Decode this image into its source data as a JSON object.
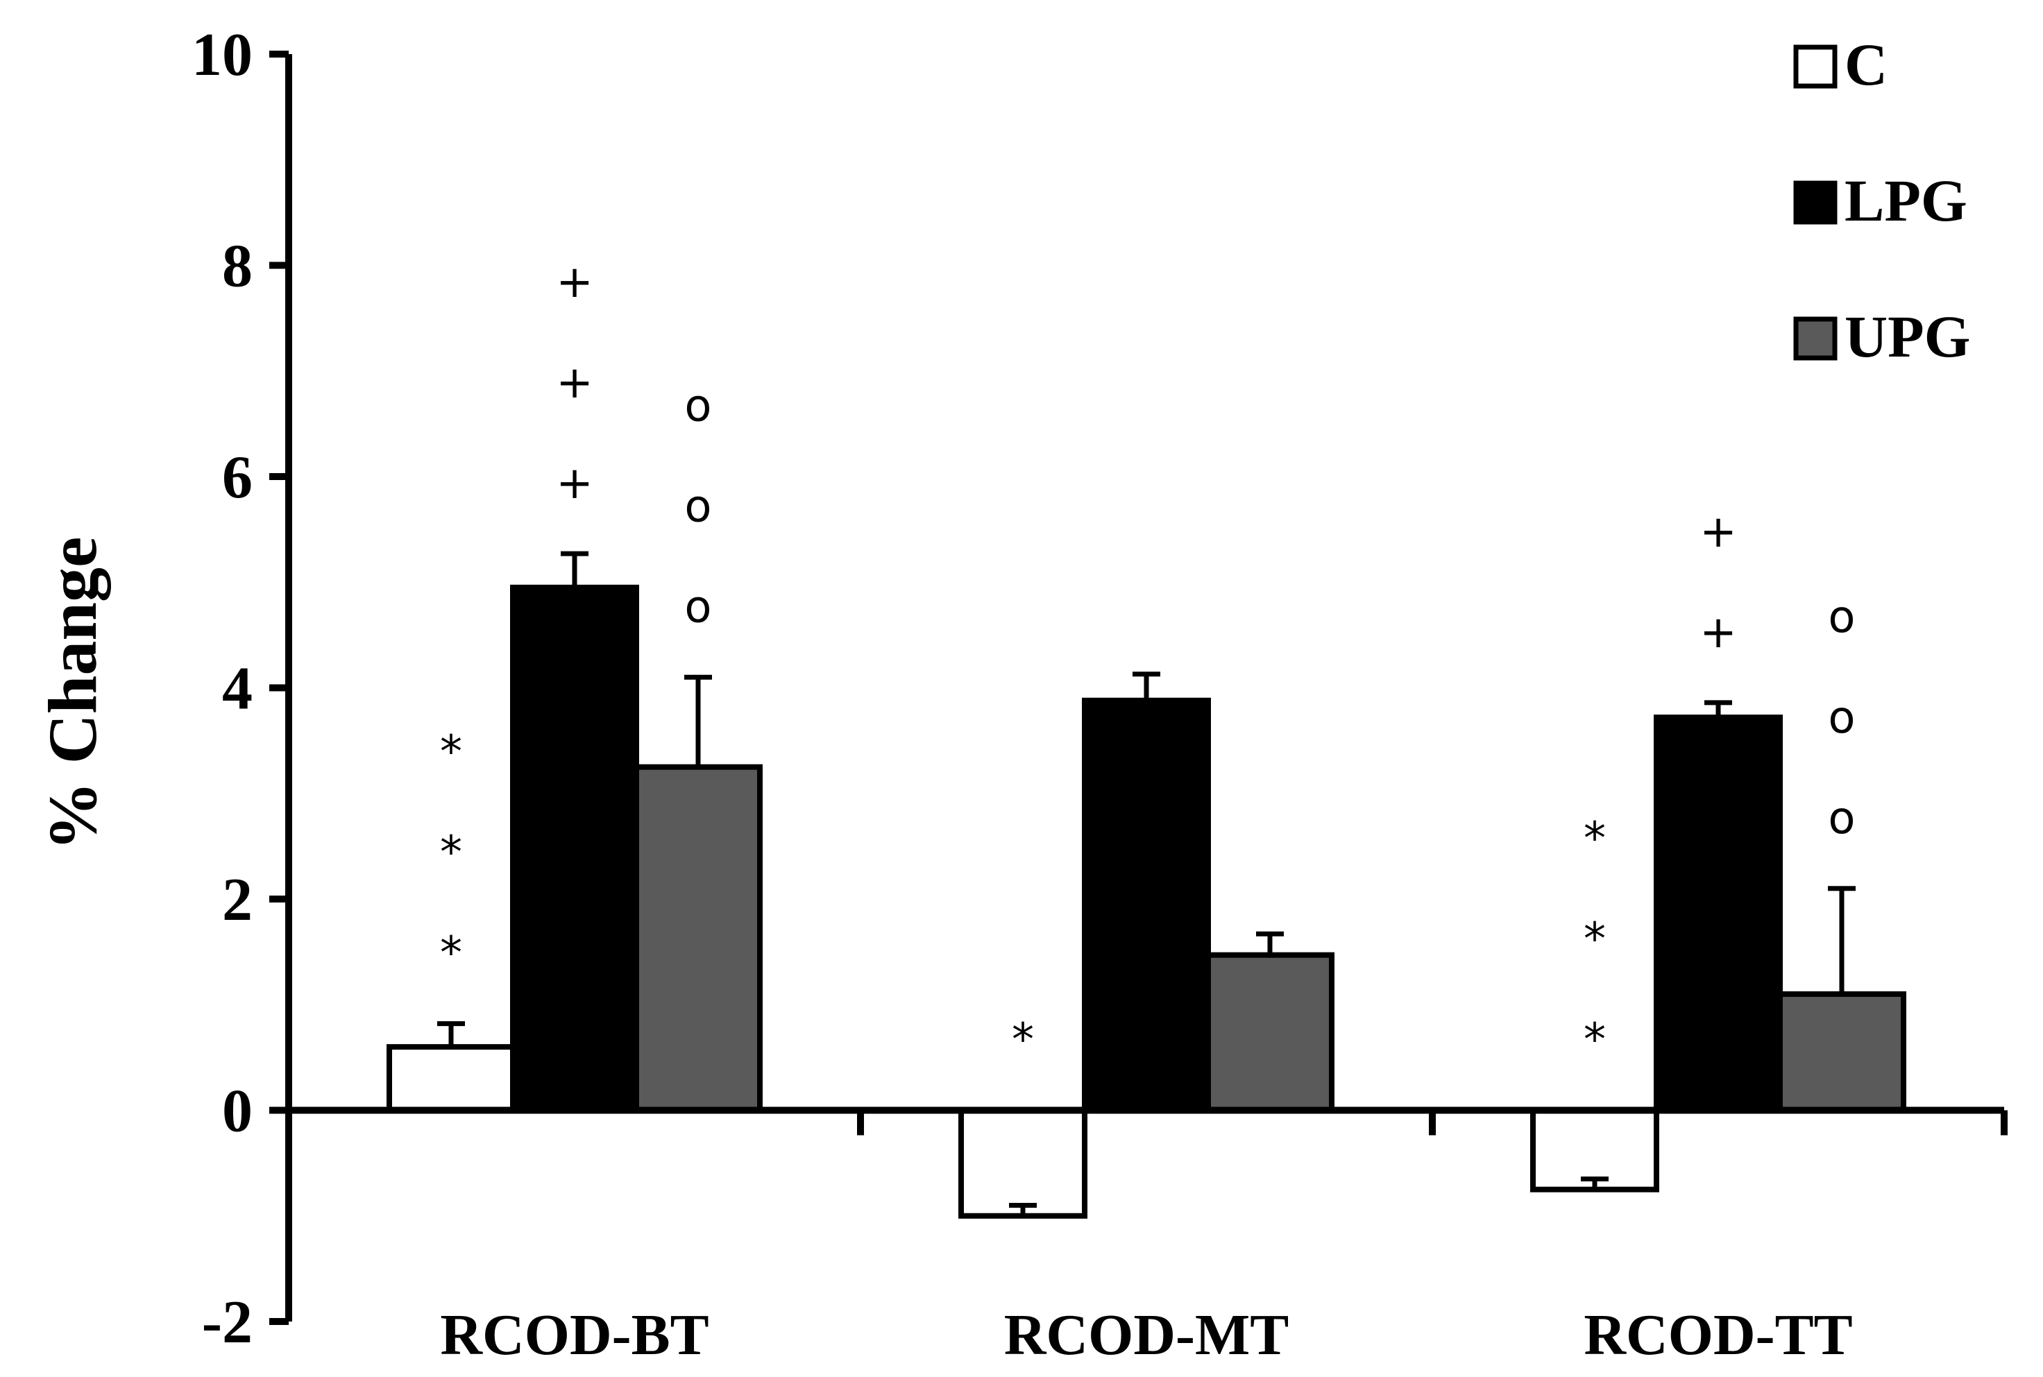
{
  "chart_data": {
    "type": "bar",
    "title": "",
    "xlabel": "",
    "ylabel": "% Change",
    "ylim": [
      -2,
      10
    ],
    "yticks": [
      -2,
      0,
      2,
      4,
      6,
      8,
      10
    ],
    "categories": [
      "RCOD-BT",
      "RCOD-MT",
      "RCOD-TT"
    ],
    "series": [
      {
        "name": "C",
        "color": "#ffffff",
        "values": [
          0.6,
          -1.0,
          -0.75
        ],
        "errors": [
          0.22,
          0.1,
          0.1
        ]
      },
      {
        "name": "LPG",
        "color": "#000000",
        "values": [
          4.95,
          3.88,
          3.72
        ],
        "errors": [
          0.32,
          0.25,
          0.14
        ]
      },
      {
        "name": "UPG",
        "color": "#5a5a5a",
        "values": [
          3.25,
          1.47,
          1.1
        ],
        "errors": [
          0.85,
          0.2,
          1.0
        ]
      }
    ],
    "legend": {
      "position": "top-right",
      "entries": [
        "C",
        "LPG",
        "UPG"
      ]
    },
    "annotations": [
      {
        "category": 0,
        "series": 0,
        "text": "*",
        "count": 3
      },
      {
        "category": 0,
        "series": 1,
        "text": "+",
        "count": 3
      },
      {
        "category": 0,
        "series": 2,
        "text": "o",
        "count": 3
      },
      {
        "category": 1,
        "series": 0,
        "text": "*",
        "count": 1
      },
      {
        "category": 2,
        "series": 0,
        "text": "*",
        "count": 3
      },
      {
        "category": 2,
        "series": 1,
        "text": "+",
        "count": 2
      },
      {
        "category": 2,
        "series": 2,
        "text": "o",
        "count": 3
      }
    ]
  }
}
